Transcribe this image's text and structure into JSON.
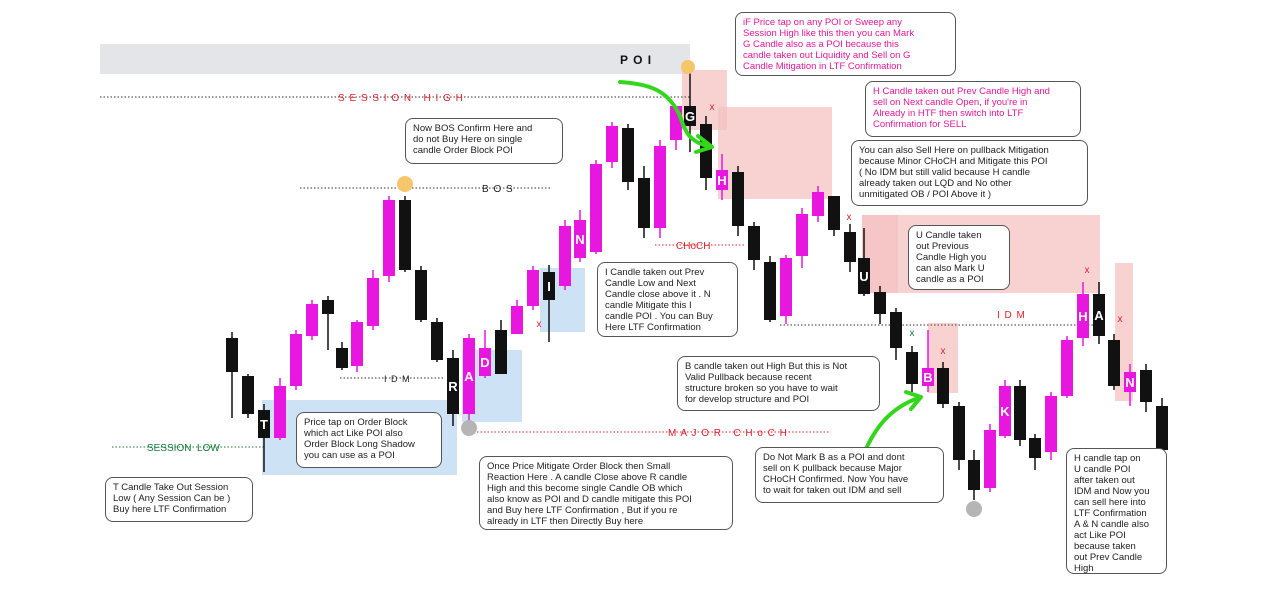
{
  "colors": {
    "bull": "#e817e0",
    "bear": "#111111",
    "zone_blue": "#c8e0f4",
    "zone_pink": "#f6c2c2",
    "poi_band": "#e3e5e8",
    "level_red": "#e0202a",
    "level_green": "#1a7a3a",
    "arrow_green": "#34d61d",
    "note_pink": "#e0189a",
    "dot_yellow": "#f5c76a",
    "dot_gray": "#b5b5b5"
  },
  "levels": {
    "poi": "P O I",
    "session_high": "S E S S I O N   H I G H",
    "bos": "B O S",
    "idm_left": "I D M",
    "idm_right": "I D M",
    "choch": "CHoCH",
    "major_choch": "M A J O R   C H o C H",
    "session_low": "SESSION  LOW"
  },
  "candle_letters": [
    "T",
    "R",
    "A",
    "D",
    "I",
    "N",
    "G",
    "H",
    "U",
    "B",
    "K",
    "H",
    "A",
    "N"
  ],
  "x_marks": [
    "x",
    "x",
    "x",
    "x",
    "x",
    "x",
    "x"
  ],
  "notes": [
    {
      "id": "t",
      "text": "T Candle Take Out Session\nLow ( Any Session Can be )\nBuy here LTF Confirmation"
    },
    {
      "id": "ob",
      "text": "Price tap on  Order Block\nwhich act Like POI also\nOrder Block Long Shadow\nyou can use as a POI"
    },
    {
      "id": "bos",
      "text": "Now BOS Confirm Here and\ndo not Buy Here on single\ncandle Order Block POI"
    },
    {
      "id": "mitigate",
      "text": "Once Price Mitigate Order Block then Small\nReaction Here . A candle Close above R candle\nHigh and this become single Candle OB which\nalso know as POI and D candle mitigate this POI\nand Buy here LTF Confirmation , But if you re\nalready in LTF then Directly Buy here"
    },
    {
      "id": "i",
      "text": "I Candle taken out Prev\nCandle Low and Next\nCandle close above it . N\ncandle Mitigate this I\ncandle POI . You can Buy\nHere LTF Confirmation"
    },
    {
      "id": "g",
      "text": "iF Price tap on any POI or Sweep any\nSession High like this then you can Mark\nG Candle also as a POI because this\ncandle taken out Liquidity and Sell on G\nCandle Mitigation in LTF Confirmation"
    },
    {
      "id": "h",
      "text": "H Candle taken out Prev Candle High and\nsell on Next candle Open, if you're in\nAlready in HTF then switch into LTF\nConfirmation for SELL"
    },
    {
      "id": "sell",
      "text": "You can also Sell Here on pullback Mitigation\nbecause Minor CHoCH and Mitigate this POI\n( No IDM but still valid because H candle\nalready taken out LQD and No other\nunmitigated OB / POI Above it )"
    },
    {
      "id": "u",
      "text": "U Candle taken\nout Previous\nCandle High you\ncan also Mark U\ncandle as a POI"
    },
    {
      "id": "b",
      "text": "B candle taken out High But this is Not\nValid Pullback because recent\nstructure broken so you have to wait\nfor develop structure and POI"
    },
    {
      "id": "k",
      "text": "Do Not Mark B as a POI and dont\nsell on K pullback because Major\nCHoCH Confirmed. Now You have\nto wait for taken out IDM and sell"
    },
    {
      "id": "hu",
      "text": "H candle tap on\nU candle  POI\nafter taken out\nIDM and Now you\ncan sell here into\nLTF Confirmation\nA & N candle also\nact Like POI\nbecause taken\nout Prev Candle\nHigh"
    }
  ]
}
